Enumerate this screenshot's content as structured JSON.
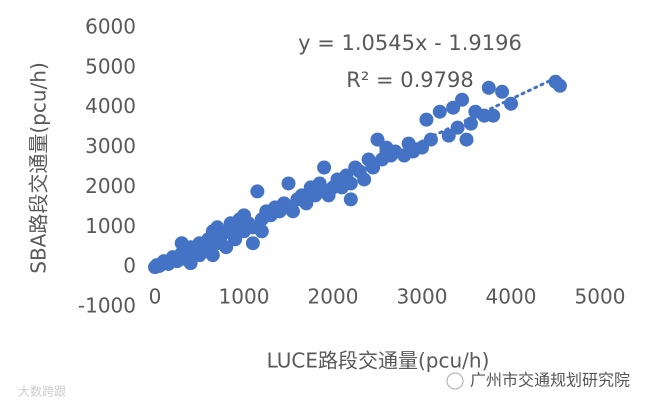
{
  "chart_data": {
    "type": "scatter",
    "x_label": "LUCE路段交通量(pcu/h)",
    "y_label": "SBA路段交通量(pcu/h)",
    "equation": "y = 1.0545x - 1.9196",
    "slope": 1.0545,
    "intercept": -1.9196,
    "r2_label": "R² = 0.9798",
    "color": "#4472c4",
    "xlim": [
      0,
      5000
    ],
    "xticks": [
      0,
      1000,
      2000,
      3000,
      4000,
      5000
    ],
    "ylim": [
      -1000,
      6000
    ],
    "yticks": [
      -1000,
      0,
      1000,
      2000,
      3000,
      4000,
      5000,
      6000
    ],
    "x": [
      0,
      20,
      50,
      80,
      100,
      150,
      200,
      250,
      300,
      350,
      400,
      450,
      500,
      500,
      550,
      600,
      600,
      650,
      700,
      700,
      750,
      800,
      800,
      850,
      900,
      900,
      950,
      1000,
      1000,
      1050,
      1100,
      1150,
      1200,
      1200,
      1250,
      1300,
      1350,
      1400,
      1450,
      1500,
      1500,
      1550,
      1600,
      1650,
      1700,
      1750,
      1800,
      1850,
      1900,
      1900,
      1950,
      2000,
      2050,
      2100,
      2150,
      2200,
      2250,
      2300,
      2350,
      2400,
      2450,
      2500,
      2550,
      2600,
      2650,
      2700,
      2800,
      2850,
      2900,
      3000,
      3050,
      3100,
      3200,
      3300,
      3350,
      3400,
      3450,
      3500,
      3550,
      3600,
      3700,
      3750,
      3800,
      3900,
      4000,
      4500,
      4550,
      650,
      300,
      400,
      1100,
      2200,
      2600
    ],
    "y": [
      0,
      50,
      30,
      100,
      150,
      80,
      250,
      150,
      350,
      200,
      500,
      350,
      600,
      300,
      450,
      700,
      400,
      900,
      600,
      1000,
      800,
      900,
      500,
      1100,
      700,
      1000,
      1200,
      900,
      1300,
      1100,
      1000,
      1900,
      1200,
      900,
      1400,
      1300,
      1500,
      1400,
      1600,
      2100,
      1500,
      1400,
      1700,
      1800,
      1600,
      2000,
      1800,
      2100,
      1900,
      2500,
      1800,
      2000,
      2200,
      2000,
      2300,
      2100,
      2500,
      2400,
      2200,
      2700,
      2500,
      3200,
      2700,
      2900,
      2800,
      2900,
      2800,
      3100,
      2900,
      3000,
      3700,
      3200,
      3900,
      3300,
      4000,
      3500,
      4200,
      3200,
      3600,
      3900,
      3800,
      4500,
      3800,
      4400,
      4100,
      4650,
      4550,
      300,
      600,
      100,
      600,
      1700,
      3000
    ]
  },
  "watermark_left": "大数跨跟",
  "watermark_right": "广州市交通规划研究院"
}
